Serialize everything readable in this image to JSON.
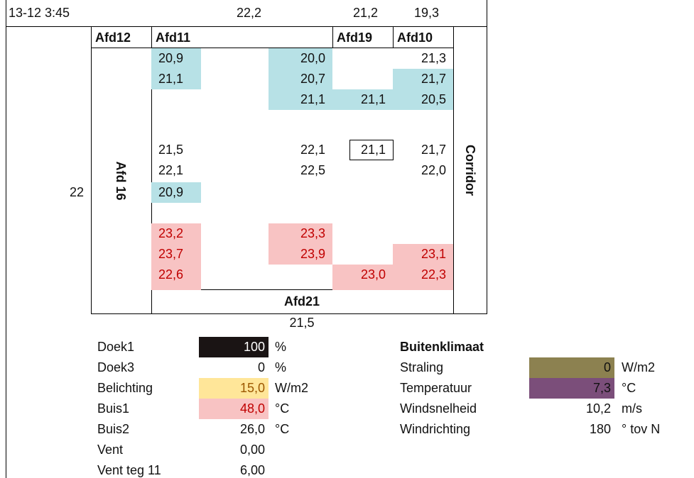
{
  "header": {
    "timestamp": "13-12 3:45",
    "top_values": [
      "22,2",
      "21,2",
      "19,3"
    ]
  },
  "map": {
    "columns": [
      "Afd12",
      "Afd11",
      "Afd19",
      "Afd10"
    ],
    "left_label": "Afd 16",
    "left_value": "22",
    "right_label": "Corridor",
    "bottom_label": "Afd21",
    "bottom_value": "21,5",
    "cells": [
      [
        {
          "text": "20,9",
          "fill": "#b7e1e6"
        },
        {
          "text": "20,0",
          "fill": "#b7e1e6"
        },
        null,
        {
          "text": "21,3"
        }
      ],
      [
        {
          "text": "21,1",
          "fill": "#b7e1e6"
        },
        {
          "text": "20,7",
          "fill": "#b7e1e6"
        },
        null,
        {
          "text": "21,7",
          "fill": "#b7e1e6"
        }
      ],
      [
        null,
        {
          "text": "21,1",
          "fill": "#b7e1e6"
        },
        {
          "text": "21,1",
          "fill": "#b7e1e6"
        },
        {
          "text": "20,5",
          "fill": "#b7e1e6"
        }
      ],
      [
        {
          "text": "21,5"
        },
        {
          "text": "22,1"
        },
        {
          "text": "21,1",
          "border": "#000000"
        },
        {
          "text": "21,7"
        }
      ],
      [
        {
          "text": "22,1"
        },
        {
          "text": "22,5"
        },
        null,
        {
          "text": "22,0"
        }
      ],
      [
        {
          "text": "20,9",
          "fill": "#b7e1e6"
        },
        null,
        null,
        null
      ],
      [
        {
          "text": "23,2",
          "fill": "#f8c3c3",
          "text_color": "#c00000"
        },
        {
          "text": "23,3",
          "fill": "#f8c3c3",
          "text_color": "#c00000"
        },
        null,
        null
      ],
      [
        {
          "text": "23,7",
          "fill": "#f8c3c3",
          "text_color": "#c00000"
        },
        {
          "text": "23,9",
          "fill": "#f8c3c3",
          "text_color": "#c00000"
        },
        null,
        {
          "text": "23,1",
          "fill": "#f8c3c3",
          "text_color": "#c00000"
        }
      ],
      [
        {
          "text": "22,6",
          "fill": "#f8c3c3",
          "text_color": "#c00000"
        },
        null,
        {
          "text": "23,0",
          "fill": "#f8c3c3",
          "text_color": "#c00000"
        },
        {
          "text": "22,3",
          "fill": "#f8c3c3",
          "text_color": "#c00000"
        }
      ]
    ]
  },
  "controls": {
    "rows": [
      {
        "label": "Doek1",
        "value": "100",
        "unit": "%",
        "fill": "#1a1414",
        "text_color": "#ffffff"
      },
      {
        "label": "Doek3",
        "value": "0",
        "unit": "%"
      },
      {
        "label": "Belichting",
        "value": "15,0",
        "unit": "W/m2",
        "fill": "#ffe699",
        "text_color": "#9c5700"
      },
      {
        "label": "Buis1",
        "value": "48,0",
        "unit": "°C",
        "fill": "#f8c3c3",
        "text_color": "#c00000"
      },
      {
        "label": "Buis2",
        "value": "26,0",
        "unit": "°C"
      },
      {
        "label": "Vent",
        "value": "0,00"
      },
      {
        "label": "Vent teg 11",
        "value": "6,00"
      }
    ]
  },
  "outside": {
    "title": "Buitenklimaat",
    "rows": [
      {
        "label": "Straling",
        "value": "0",
        "unit": "W/m2",
        "fill": "#8c8150"
      },
      {
        "label": "Temperatuur",
        "value": "7,3",
        "unit": "°C",
        "fill": "#7b4e7a"
      },
      {
        "label": "Windsnelheid",
        "value": "10,2",
        "unit": "m/s"
      },
      {
        "label": "Windrichting",
        "value": "180",
        "unit": "° tov N"
      }
    ]
  }
}
